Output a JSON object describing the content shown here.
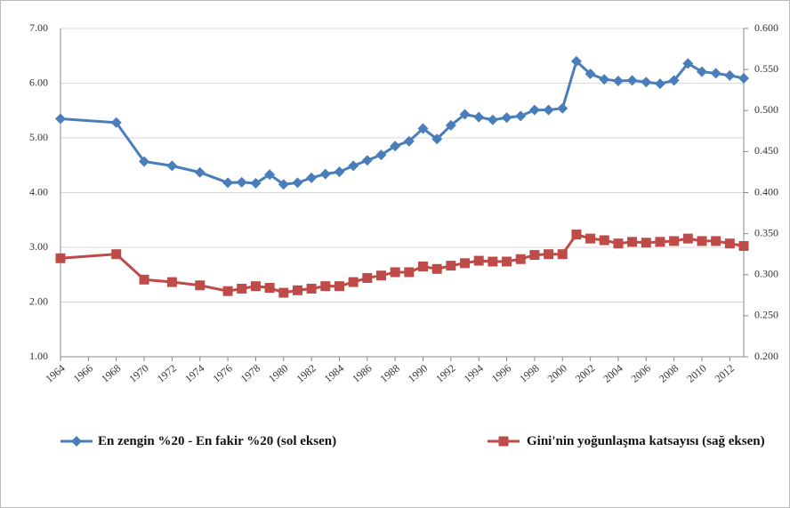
{
  "chart_data": {
    "type": "line",
    "x": [
      1964,
      1968,
      1970,
      1972,
      1974,
      1976,
      1977,
      1978,
      1979,
      1980,
      1981,
      1982,
      1983,
      1984,
      1985,
      1986,
      1987,
      1988,
      1989,
      1990,
      1991,
      1992,
      1993,
      1994,
      1995,
      1996,
      1997,
      1998,
      1999,
      2000,
      2001,
      2002,
      2003,
      2004,
      2005,
      2006,
      2007,
      2008,
      2009,
      2010,
      2011,
      2012,
      2013
    ],
    "xlim": [
      1964,
      2013
    ],
    "xticks": [
      1964,
      1966,
      1968,
      1970,
      1972,
      1974,
      1976,
      1978,
      1980,
      1982,
      1984,
      1986,
      1988,
      1990,
      1992,
      1994,
      1996,
      1998,
      2000,
      2002,
      2004,
      2006,
      2008,
      2010,
      2012
    ],
    "ylim": [
      1,
      7
    ],
    "yticks": [
      {
        "value": 1,
        "label": "1.00"
      },
      {
        "value": 2,
        "label": "2.00"
      },
      {
        "value": 3,
        "label": "3.00"
      },
      {
        "value": 4,
        "label": "4.00"
      },
      {
        "value": 5,
        "label": "5.00"
      },
      {
        "value": 6,
        "label": "6.00"
      },
      {
        "value": 7,
        "label": "7.00"
      }
    ],
    "y2lim": [
      0.2,
      0.6
    ],
    "y2ticks": [
      {
        "value": 0.2,
        "label": "0.200"
      },
      {
        "value": 0.25,
        "label": "0.250"
      },
      {
        "value": 0.3,
        "label": "0.300"
      },
      {
        "value": 0.35,
        "label": "0.350"
      },
      {
        "value": 0.4,
        "label": "0.400"
      },
      {
        "value": 0.45,
        "label": "0.450"
      },
      {
        "value": 0.5,
        "label": "0.500"
      },
      {
        "value": 0.55,
        "label": "0.550"
      },
      {
        "value": 0.6,
        "label": "0.600"
      }
    ],
    "grid": true,
    "legend": "bottom",
    "series": [
      {
        "name": "En zengin %20 - En fakir %20 (sol eksen)",
        "color": "#4a7ebb",
        "marker": "diamond",
        "values": [
          5.35,
          5.28,
          4.57,
          4.49,
          4.37,
          4.18,
          4.19,
          4.17,
          4.33,
          4.15,
          4.18,
          4.27,
          4.34,
          4.38,
          4.49,
          4.59,
          4.69,
          4.85,
          4.94,
          5.17,
          4.98,
          5.23,
          5.43,
          5.38,
          5.33,
          5.37,
          5.4,
          5.51,
          5.51,
          5.54,
          6.4,
          6.17,
          6.07,
          6.04,
          6.05,
          6.02,
          5.99,
          6.05,
          6.36,
          6.21,
          6.18,
          6.14,
          6.09
        ]
      },
      {
        "name": "Gini'nin yoğunlaşma katsayısı (sağ eksen)",
        "color": "#be4b48",
        "marker": "square",
        "axis": "y2",
        "values": [
          0.32,
          0.325,
          0.294,
          0.291,
          0.287,
          0.28,
          0.283,
          0.286,
          0.284,
          0.278,
          0.281,
          0.283,
          0.286,
          0.286,
          0.291,
          0.296,
          0.299,
          0.303,
          0.303,
          0.31,
          0.307,
          0.311,
          0.314,
          0.317,
          0.316,
          0.316,
          0.319,
          0.324,
          0.325,
          0.325,
          0.349,
          0.344,
          0.342,
          0.338,
          0.34,
          0.339,
          0.34,
          0.341,
          0.344,
          0.341,
          0.341,
          0.338,
          0.335
        ]
      }
    ]
  }
}
